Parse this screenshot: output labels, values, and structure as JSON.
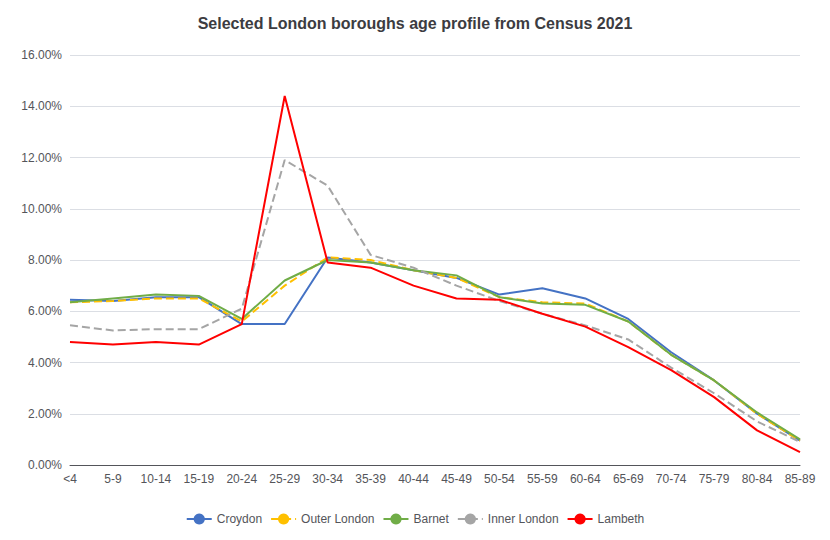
{
  "chart_data": {
    "type": "line",
    "title": "Selected London boroughs age profile from Census 2021",
    "categories": [
      "<4",
      "5-9",
      "10-14",
      "15-19",
      "20-24",
      "25-29",
      "30-34",
      "35-39",
      "40-44",
      "45-49",
      "50-54",
      "55-59",
      "60-64",
      "65-69",
      "70-74",
      "75-79",
      "80-84",
      "85-89"
    ],
    "series": [
      {
        "name": "Croydon",
        "color": "#4472C4",
        "line_style": "solid",
        "values": [
          0.0645,
          0.064,
          0.0655,
          0.0655,
          0.055,
          0.055,
          0.081,
          0.079,
          0.076,
          0.073,
          0.0665,
          0.069,
          0.065,
          0.057,
          0.044,
          0.033,
          0.02,
          0.0095
        ]
      },
      {
        "name": "Outer London",
        "color": "#FFC000",
        "line_style": "dashed",
        "values": [
          0.0635,
          0.064,
          0.065,
          0.065,
          0.056,
          0.07,
          0.081,
          0.08,
          0.076,
          0.073,
          0.0655,
          0.0635,
          0.063,
          0.056,
          0.043,
          0.033,
          0.02,
          0.0095
        ]
      },
      {
        "name": "Barnet",
        "color": "#70AD47",
        "line_style": "solid",
        "values": [
          0.0635,
          0.065,
          0.0665,
          0.066,
          0.057,
          0.072,
          0.08,
          0.079,
          0.076,
          0.074,
          0.0655,
          0.063,
          0.0625,
          0.056,
          0.043,
          0.033,
          0.0205,
          0.01
        ]
      },
      {
        "name": "Inner London",
        "color": "#A5A5A5",
        "line_style": "dashed",
        "values": [
          0.0545,
          0.0525,
          0.053,
          0.053,
          0.061,
          0.119,
          0.109,
          0.082,
          0.077,
          0.07,
          0.064,
          0.059,
          0.0545,
          0.049,
          0.038,
          0.028,
          0.017,
          0.009
        ]
      },
      {
        "name": "Lambeth",
        "color": "#FF0000",
        "line_style": "solid",
        "values": [
          0.048,
          0.047,
          0.048,
          0.047,
          0.055,
          0.144,
          0.079,
          0.077,
          0.07,
          0.065,
          0.0645,
          0.059,
          0.054,
          0.046,
          0.037,
          0.0265,
          0.0135,
          0.005
        ]
      }
    ],
    "ylim": [
      0,
      0.16
    ],
    "yticks": [
      {
        "value": 0,
        "label": "0.00%"
      },
      {
        "value": 0.02,
        "label": "2.00%"
      },
      {
        "value": 0.04,
        "label": "4.00%"
      },
      {
        "value": 0.06,
        "label": "6.00%"
      },
      {
        "value": 0.08,
        "label": "8.00%"
      },
      {
        "value": 0.1,
        "label": "10.00%"
      },
      {
        "value": 0.12,
        "label": "12.00%"
      },
      {
        "value": 0.14,
        "label": "14.00%"
      },
      {
        "value": 0.16,
        "label": "16.00%"
      }
    ],
    "grid": true,
    "legend": "bottom"
  }
}
